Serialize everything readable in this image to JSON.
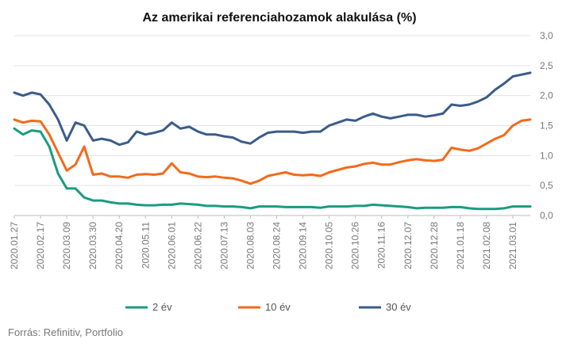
{
  "chart_data": {
    "type": "line",
    "title": "Az amerikai referenciahozamok alakulása (%)",
    "source": "Forrás: Refinitiv, Portfolio",
    "xlabel": "",
    "ylabel": "",
    "ylim": [
      0,
      3
    ],
    "yticks": [
      "0,0",
      "0,5",
      "1,0",
      "1,5",
      "2,0",
      "2,5",
      "3,0"
    ],
    "y_axis_position": "right",
    "grid": "horizontal",
    "legend_position": "bottom",
    "x_tick_labels": [
      "2020.01.27",
      "2020.02.17",
      "2020.03.09",
      "2020.03.30",
      "2020.04.20",
      "2020.05.11",
      "2020.06.01",
      "2020.06.22",
      "2020.07.13",
      "2020.08.03",
      "2020.08.24",
      "2020.09.14",
      "2020.10.05",
      "2020.10.26",
      "2020.11.16",
      "2020.12.07",
      "2020.12.28",
      "2021.01.18",
      "2021.02.08",
      "2021.03.01"
    ],
    "x": [
      "2020.01.27",
      "2020.02.03",
      "2020.02.10",
      "2020.02.17",
      "2020.02.24",
      "2020.03.02",
      "2020.03.09",
      "2020.03.16",
      "2020.03.23",
      "2020.03.30",
      "2020.04.06",
      "2020.04.13",
      "2020.04.20",
      "2020.04.27",
      "2020.05.04",
      "2020.05.11",
      "2020.05.18",
      "2020.05.25",
      "2020.06.01",
      "2020.06.08",
      "2020.06.15",
      "2020.06.22",
      "2020.06.29",
      "2020.07.06",
      "2020.07.13",
      "2020.07.20",
      "2020.07.27",
      "2020.08.03",
      "2020.08.10",
      "2020.08.17",
      "2020.08.24",
      "2020.08.31",
      "2020.09.07",
      "2020.09.14",
      "2020.09.21",
      "2020.09.28",
      "2020.10.05",
      "2020.10.12",
      "2020.10.19",
      "2020.10.26",
      "2020.11.02",
      "2020.11.09",
      "2020.11.16",
      "2020.11.23",
      "2020.11.30",
      "2020.12.07",
      "2020.12.14",
      "2020.12.21",
      "2020.12.28",
      "2021.01.04",
      "2021.01.11",
      "2021.01.18",
      "2021.01.25",
      "2021.02.01",
      "2021.02.08",
      "2021.02.15",
      "2021.02.22",
      "2021.03.01",
      "2021.03.08",
      "2021.03.15"
    ],
    "series": [
      {
        "name": "2 év",
        "color": "#1a9c80",
        "values": [
          1.45,
          1.35,
          1.42,
          1.4,
          1.15,
          0.7,
          0.45,
          0.45,
          0.3,
          0.25,
          0.25,
          0.22,
          0.2,
          0.2,
          0.18,
          0.17,
          0.17,
          0.18,
          0.18,
          0.2,
          0.19,
          0.18,
          0.16,
          0.16,
          0.15,
          0.15,
          0.14,
          0.12,
          0.15,
          0.15,
          0.15,
          0.14,
          0.14,
          0.14,
          0.14,
          0.13,
          0.15,
          0.15,
          0.15,
          0.16,
          0.16,
          0.18,
          0.17,
          0.16,
          0.15,
          0.14,
          0.12,
          0.13,
          0.13,
          0.13,
          0.14,
          0.14,
          0.12,
          0.11,
          0.11,
          0.11,
          0.12,
          0.15,
          0.15,
          0.15
        ]
      },
      {
        "name": "10 év",
        "color": "#f26a1b",
        "values": [
          1.6,
          1.55,
          1.58,
          1.57,
          1.35,
          1.05,
          0.75,
          0.85,
          1.15,
          0.68,
          0.7,
          0.65,
          0.65,
          0.63,
          0.68,
          0.69,
          0.68,
          0.7,
          0.87,
          0.72,
          0.7,
          0.65,
          0.64,
          0.65,
          0.63,
          0.62,
          0.58,
          0.53,
          0.58,
          0.66,
          0.69,
          0.72,
          0.68,
          0.67,
          0.68,
          0.66,
          0.72,
          0.76,
          0.8,
          0.82,
          0.86,
          0.88,
          0.85,
          0.85,
          0.89,
          0.92,
          0.94,
          0.92,
          0.91,
          0.93,
          1.13,
          1.1,
          1.08,
          1.12,
          1.2,
          1.28,
          1.34,
          1.5,
          1.58,
          1.6
        ]
      },
      {
        "name": "30 év",
        "color": "#3b5c8a",
        "values": [
          2.05,
          2.0,
          2.05,
          2.02,
          1.85,
          1.6,
          1.25,
          1.55,
          1.5,
          1.25,
          1.28,
          1.25,
          1.18,
          1.22,
          1.4,
          1.35,
          1.38,
          1.42,
          1.55,
          1.45,
          1.48,
          1.4,
          1.35,
          1.35,
          1.32,
          1.3,
          1.23,
          1.2,
          1.3,
          1.38,
          1.4,
          1.4,
          1.4,
          1.38,
          1.4,
          1.4,
          1.5,
          1.55,
          1.6,
          1.58,
          1.65,
          1.7,
          1.65,
          1.62,
          1.65,
          1.68,
          1.68,
          1.65,
          1.67,
          1.7,
          1.85,
          1.83,
          1.85,
          1.9,
          1.97,
          2.1,
          2.2,
          2.32,
          2.35,
          2.38
        ]
      }
    ]
  }
}
